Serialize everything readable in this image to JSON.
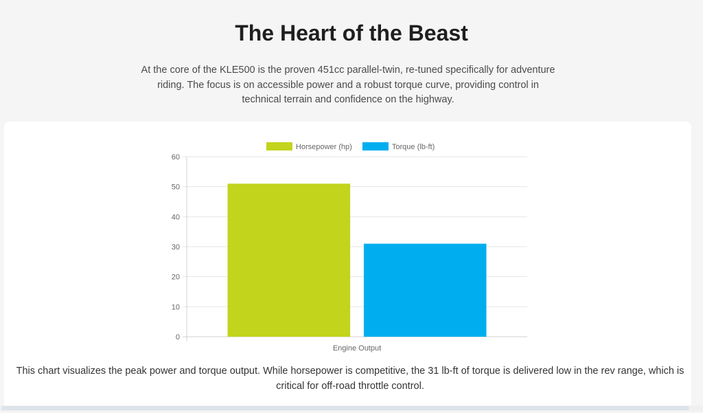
{
  "header": {
    "title": "The Heart of the Beast",
    "intro": "At the core of the KLE500 is the proven 451cc parallel-twin, re-tuned specifically for adventure riding. The focus is on accessible power and a robust torque curve, providing control in technical terrain and confidence on the highway."
  },
  "caption": "This chart visualizes the peak power and torque output. While horsepower is competitive, the 31 lb-ft of torque is delivered low in the rev range, which is critical for off-road throttle control.",
  "chart_data": {
    "type": "bar",
    "categories": [
      "Engine Output"
    ],
    "series": [
      {
        "name": "Horsepower (hp)",
        "values": [
          51
        ],
        "color": "#c2d41c"
      },
      {
        "name": "Torque (lb-ft)",
        "values": [
          31
        ],
        "color": "#00aeef"
      }
    ],
    "xlabel": "Engine Output",
    "ylabel": "",
    "ylim": [
      0,
      60
    ],
    "yticks": [
      0,
      10,
      20,
      30,
      40,
      50,
      60
    ],
    "grid": true,
    "legend_position": "top"
  }
}
